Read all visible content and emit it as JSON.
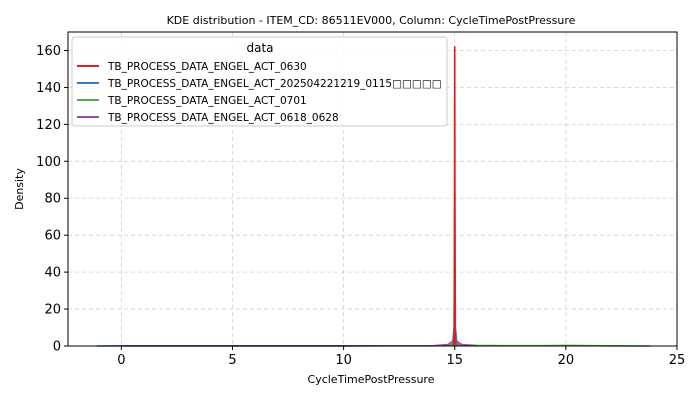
{
  "chart_data": {
    "type": "line",
    "title": "KDE distribution - ITEM_CD: 86511EV000, Column: CycleTimePostPressure",
    "xlabel": "CycleTimePostPressure",
    "ylabel": "Density",
    "xlim": [
      -2.4,
      25
    ],
    "ylim": [
      0,
      170
    ],
    "xticks": [
      0,
      5,
      10,
      15,
      20,
      25
    ],
    "yticks": [
      0,
      20,
      40,
      60,
      80,
      100,
      120,
      140,
      160
    ],
    "grid": true,
    "legend": {
      "title": "data",
      "placement": "top-left"
    },
    "series": [
      {
        "name": "TB_PROCESS_DATA_ENGEL_ACT_0630",
        "color": "#e41a1c",
        "x": [
          14.9,
          14.95,
          14.98,
          14.99,
          15.0,
          15.01,
          15.02,
          15.05,
          15.1
        ],
        "y": [
          0,
          0.5,
          5,
          60,
          162,
          60,
          5,
          0.5,
          0
        ]
      },
      {
        "name": "TB_PROCESS_DATA_ENGEL_ACT_202504221219_0115□□□□□",
        "color": "#377eb8",
        "x": [
          -1.1,
          0,
          5,
          10,
          14.5,
          14.9,
          14.97,
          15.0,
          15.03,
          15.1,
          15.5
        ],
        "y": [
          0,
          0.1,
          0.1,
          0.1,
          0.2,
          1,
          10,
          85,
          10,
          1,
          0
        ]
      },
      {
        "name": "TB_PROCESS_DATA_ENGEL_ACT_0701",
        "color": "#4daf4a",
        "x": [
          14.5,
          14.8,
          15.0,
          15.3,
          16,
          17,
          18,
          19,
          20,
          21,
          22,
          23,
          23.8
        ],
        "y": [
          0,
          0.5,
          1.5,
          0.8,
          0.3,
          0.2,
          0.2,
          0.2,
          0.3,
          0.2,
          0.1,
          0.05,
          0
        ]
      },
      {
        "name": "TB_PROCESS_DATA_ENGEL_ACT_0618_0628",
        "color": "#984ea3",
        "x": [
          0,
          5,
          10,
          14,
          14.7,
          14.9,
          15.0,
          15.1,
          15.3,
          16
        ],
        "y": [
          0.05,
          0.05,
          0.05,
          0.1,
          0.8,
          2.5,
          3,
          2.5,
          0.8,
          0
        ]
      }
    ]
  }
}
